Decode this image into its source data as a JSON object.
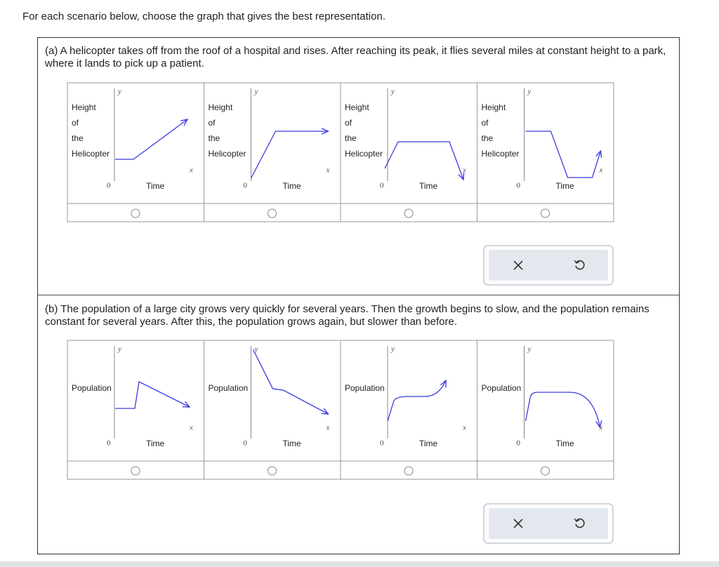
{
  "instruction": "For each scenario below, choose the graph that gives the best representation.",
  "parts": [
    {
      "text": "(a) A helicopter takes off from the roof of a hospital and rises. After reaching its peak, it flies several miles at constant height to a park, where it lands to pick up a patient.",
      "options": [
        {
          "y_label": "y",
          "x_label": "x",
          "origin": "0",
          "time_label": "Time",
          "quantity_lines": [
            "Height",
            "of",
            "the",
            "Helicopter"
          ]
        },
        {
          "y_label": "y",
          "x_label": "x",
          "origin": "0",
          "time_label": "Time",
          "quantity_lines": [
            "Height",
            "of",
            "the",
            "Helicopter"
          ]
        },
        {
          "y_label": "y",
          "x_label": "x",
          "origin": "0",
          "time_label": "Time",
          "quantity_lines": [
            "Height",
            "of",
            "the",
            "Helicopter"
          ]
        },
        {
          "y_label": "y",
          "x_label": "x",
          "origin": "0",
          "time_label": "Time",
          "quantity_lines": [
            "Height",
            "of",
            "the",
            "Helicopter"
          ]
        }
      ]
    },
    {
      "text": "(b) The population of a large city grows very quickly for several years. Then the growth begins to slow, and the population remains constant for several years. After this, the population grows again, but slower than before.",
      "options": [
        {
          "y_label": "y",
          "x_label": "x",
          "origin": "0",
          "time_label": "Time",
          "quantity_lines": [
            "Population"
          ]
        },
        {
          "y_label": "y",
          "x_label": "x",
          "origin": "0",
          "time_label": "Time",
          "quantity_lines": [
            "Population"
          ]
        },
        {
          "y_label": "y",
          "x_label": "x",
          "origin": "0",
          "time_label": "Time",
          "quantity_lines": [
            "Population"
          ]
        },
        {
          "y_label": "y",
          "x_label": "x",
          "origin": "0",
          "time_label": "Time",
          "quantity_lines": [
            "Population"
          ]
        }
      ]
    }
  ]
}
